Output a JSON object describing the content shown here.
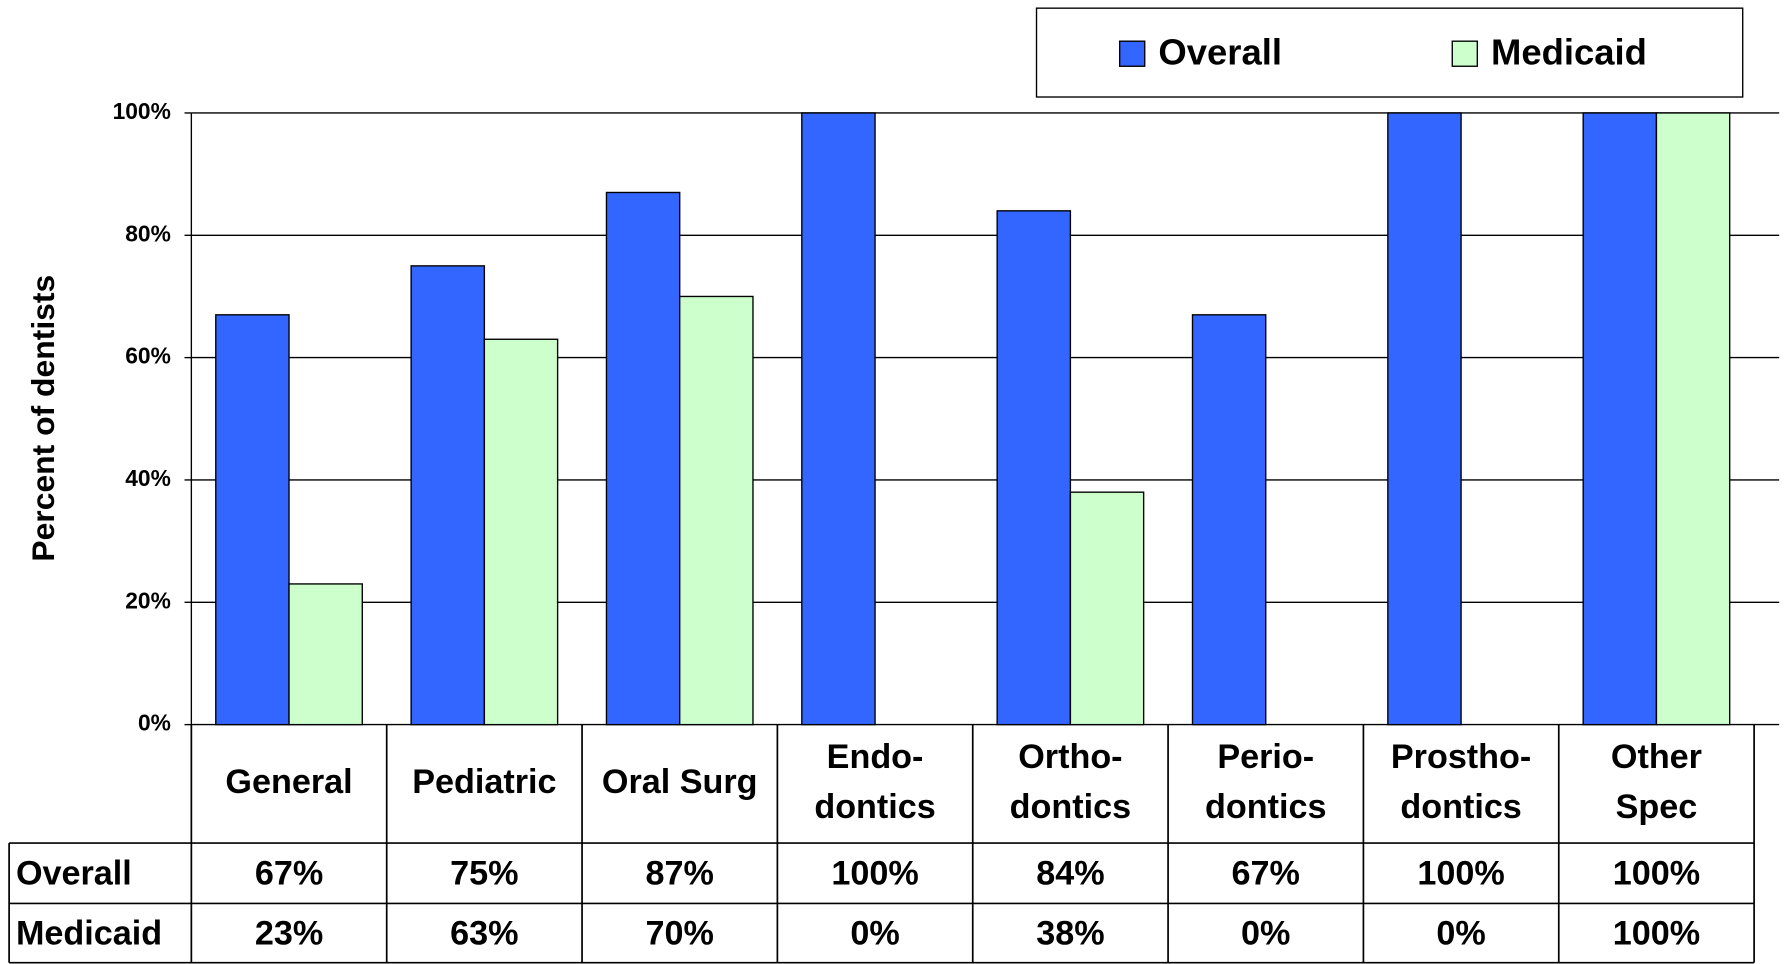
{
  "chart_data": {
    "type": "bar",
    "y_label": "Percent of dentists",
    "categories": [
      "General",
      "Pediatric",
      "Oral Surg",
      "Endo-\ndontics",
      "Ortho-\ndontics",
      "Perio-\ndontics",
      "Prostho-\ndontics",
      "Other\nSpec"
    ],
    "series": [
      {
        "name": "Overall",
        "color": "#3366ff",
        "values": [
          67,
          75,
          87,
          100,
          84,
          67,
          100,
          100
        ],
        "value_labels": [
          "67%",
          "75%",
          "87%",
          "100%",
          "84%",
          "67%",
          "100%",
          "100%"
        ]
      },
      {
        "name": "Medicaid",
        "color": "#ccffcc",
        "values": [
          23,
          63,
          70,
          0,
          38,
          0,
          0,
          100
        ],
        "value_labels": [
          "23%",
          "63%",
          "70%",
          "0%",
          "38%",
          "0%",
          "0%",
          "100%"
        ]
      }
    ],
    "ylim": [
      0,
      100
    ],
    "yticks": [
      {
        "value": 0,
        "label": "0%"
      },
      {
        "value": 20,
        "label": "20%"
      },
      {
        "value": 40,
        "label": "40%"
      },
      {
        "value": 60,
        "label": "60%"
      },
      {
        "value": 80,
        "label": "80%"
      },
      {
        "value": 100,
        "label": "100%"
      }
    ],
    "grid": true,
    "legend": "top-right"
  }
}
